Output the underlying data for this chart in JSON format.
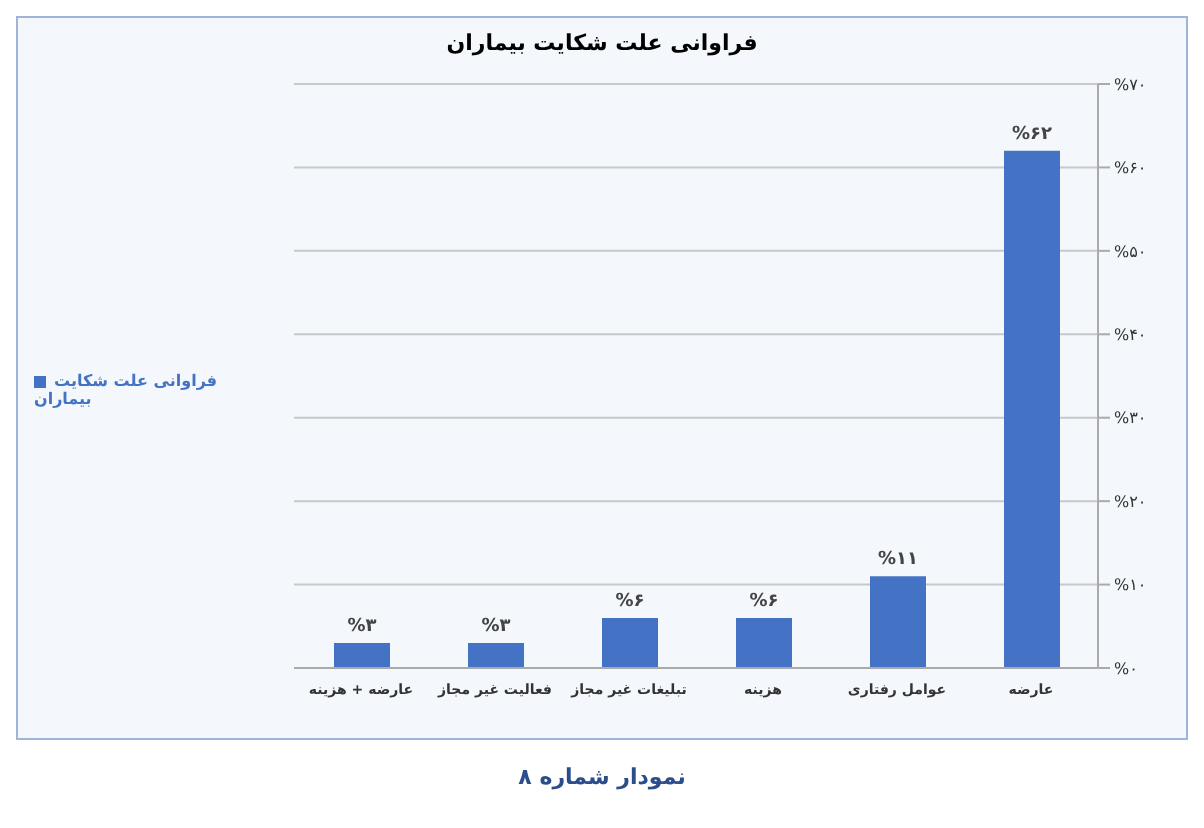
{
  "chart_data": {
    "type": "bar",
    "title": "فراوانی علت شکایت بیماران",
    "categories": [
      "عارضه + هزینه",
      "فعالیت غیر مجاز",
      "تبلیغات غیر مجاز",
      "هزینه",
      "عوامل رفتاری",
      "عارضه"
    ],
    "series": [
      {
        "name": "فراوانی علت شکایت بیماران",
        "color": "#4472c4",
        "values": [
          3,
          3,
          6,
          6,
          11,
          62
        ],
        "value_labels": [
          "%۳",
          "%۳",
          "%۶",
          "%۶",
          "%۱۱",
          "%۶۲"
        ]
      }
    ],
    "ylim": [
      0,
      70
    ],
    "yticks": [
      {
        "value": 0,
        "label": "%۰"
      },
      {
        "value": 10,
        "label": "%۱۰"
      },
      {
        "value": 20,
        "label": "%۲۰"
      },
      {
        "value": 30,
        "label": "%۳۰"
      },
      {
        "value": 40,
        "label": "%۴۰"
      },
      {
        "value": 50,
        "label": "%۵۰"
      },
      {
        "value": 60,
        "label": "%۶۰"
      },
      {
        "value": 70,
        "label": "%۷۰"
      }
    ],
    "grid": "y",
    "legend": "left",
    "annotations": [
      "نمودار شماره ۸"
    ]
  }
}
